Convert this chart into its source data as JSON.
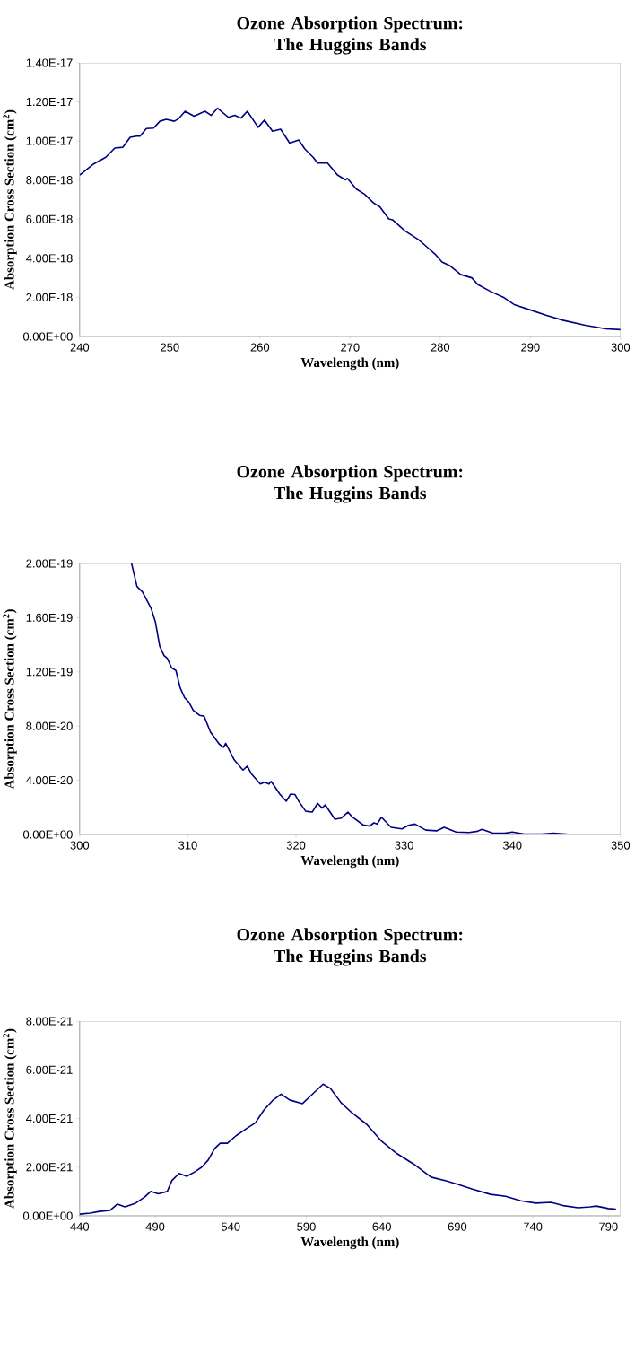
{
  "chart_data": [
    {
      "type": "line",
      "title": "Ozone Absorption Spectrum: The Huggins Bands",
      "xlabel": "Wavelength (nm)",
      "ylabel": "Absorption Cross Section (cm$^{2}$)",
      "color": "#000080",
      "x": [
        240,
        241.5,
        242.9,
        243.9,
        244.8,
        245.6,
        246.3,
        246.7,
        247.4,
        248.2,
        248.9,
        249.6,
        250.5,
        251.0,
        251.7,
        252.7,
        253.9,
        254.6,
        255.3,
        256.5,
        257.2,
        257.9,
        258.6,
        259.8,
        260.5,
        261.4,
        262.3,
        263.3,
        264.3,
        265.0,
        265.9,
        266.4,
        267.5,
        268.6,
        269.5,
        269.7,
        270.7,
        271.6,
        272.6,
        273.3,
        274.3,
        274.7,
        276.1,
        277.6,
        278.5,
        279.5,
        280.2,
        281.1,
        282.3,
        283.5,
        284.2,
        285.6,
        287.1,
        288.2,
        289.9,
        291.8,
        293.7,
        296.1,
        298.4,
        300
      ],
      "values": [
        8.26e-18,
        8.81e-18,
        9.17e-18,
        9.64e-18,
        9.68e-18,
        1.019e-17,
        1.025e-17,
        1.025e-17,
        1.064e-17,
        1.066e-17,
        1.101e-17,
        1.111e-17,
        1.101e-17,
        1.115e-17,
        1.152e-17,
        1.127e-17,
        1.152e-17,
        1.131e-17,
        1.168e-17,
        1.121e-17,
        1.131e-17,
        1.117e-17,
        1.152e-17,
        1.07e-17,
        1.107e-17,
        1.05e-17,
        1.06e-17,
        9.89e-18,
        1.005e-17,
        9.58e-18,
        9.17e-18,
        8.87e-18,
        8.87e-18,
        8.26e-18,
        8.01e-18,
        8.09e-18,
        7.54e-18,
        7.28e-18,
        6.83e-18,
        6.63e-18,
        6.01e-18,
        5.97e-18,
        5.4e-18,
        4.95e-18,
        4.59e-18,
        4.18e-18,
        3.81e-18,
        3.61e-18,
        3.16e-18,
        3e-18,
        2.65e-18,
        2.3e-18,
        1.98e-18,
        1.63e-18,
        1.37e-18,
        1.08e-18,
        8.2e-19,
        5.7e-19,
        3.9e-19,
        3.5e-19
      ],
      "xlim": [
        240,
        300
      ],
      "ylim": [
        0,
        1.4e-17
      ],
      "xticks": [
        240,
        250,
        260,
        270,
        280,
        290,
        300
      ],
      "yticks": [
        {
          "value": 0,
          "label": "0.00E+00"
        },
        {
          "value": 2e-18,
          "label": "2.00E-18"
        },
        {
          "value": 4e-18,
          "label": "4.00E-18"
        },
        {
          "value": 6e-18,
          "label": "6.00E-18"
        },
        {
          "value": 8e-18,
          "label": "8.00E-18"
        },
        {
          "value": 1e-17,
          "label": "1.00E-17"
        },
        {
          "value": 1.2e-17,
          "label": "1.20E-17"
        },
        {
          "value": 1.4e-17,
          "label": "1.40E-17"
        }
      ]
    },
    {
      "type": "line",
      "title": "Ozone Absorption Spectrum: The Huggins Bands",
      "xlabel": "Wavelength (nm)",
      "ylabel": "Absorption Cross Section (cm$^{2}$)",
      "color": "#000080",
      "x": [
        304.8,
        305.3,
        305.8,
        306.2,
        306.6,
        307.0,
        307.4,
        307.8,
        308.1,
        308.5,
        308.9,
        309.3,
        309.7,
        310.1,
        310.5,
        311.1,
        311.5,
        312.1,
        312.9,
        313.3,
        313.5,
        314.3,
        315.1,
        315.5,
        315.9,
        316.7,
        317.1,
        317.5,
        317.7,
        318.5,
        319.1,
        319.5,
        319.9,
        320.3,
        320.9,
        321.5,
        322.0,
        322.4,
        322.7,
        323.6,
        324.2,
        324.8,
        325.2,
        326.2,
        326.8,
        327.2,
        327.5,
        327.9,
        328.8,
        329.8,
        330.4,
        331.0,
        332.0,
        333.0,
        333.7,
        334.8,
        336.0,
        336.8,
        337.2,
        338.2,
        339.3,
        340.0,
        341.1,
        342.7,
        343.8,
        345.5,
        350
      ],
      "values": [
        2e-19,
        1.83e-19,
        1.79e-19,
        1.73e-19,
        1.67e-19,
        1.57e-19,
        1.39e-19,
        1.32e-19,
        1.3e-19,
        1.23e-19,
        1.21e-19,
        1.08e-19,
        1.01e-19,
        9.76e-20,
        9.17e-20,
        8.79e-20,
        8.73e-20,
        7.55e-20,
        6.67e-20,
        6.43e-20,
        6.73e-20,
        5.49e-20,
        4.75e-20,
        5.04e-20,
        4.45e-20,
        3.72e-20,
        3.86e-20,
        3.72e-20,
        3.92e-20,
        2.98e-20,
        2.45e-20,
        2.98e-20,
        2.95e-20,
        2.39e-20,
        1.71e-20,
        1.65e-20,
        2.3e-20,
        1.95e-20,
        2.18e-20,
        1.12e-20,
        1.21e-20,
        1.65e-20,
        1.3e-20,
        7.1e-21,
        6.2e-21,
        8.6e-21,
        7.7e-21,
        1.27e-20,
        5.3e-21,
        4.1e-21,
        6.8e-21,
        7.7e-21,
        3.2e-21,
        2.7e-21,
        5.3e-21,
        1.8e-21,
        1.5e-21,
        2.4e-21,
        3.8e-21,
        9e-22,
        9e-22,
        1.8e-21,
        3e-22,
        3e-22,
        9e-22,
        0,
        0
      ],
      "xlim": [
        300,
        350
      ],
      "ylim": [
        0,
        2e-19
      ],
      "xticks": [
        300,
        310,
        320,
        330,
        340,
        350
      ],
      "yticks": [
        {
          "value": 0,
          "label": "0.00E+00"
        },
        {
          "value": 4e-20,
          "label": "4.00E-20"
        },
        {
          "value": 8e-20,
          "label": "8.00E-20"
        },
        {
          "value": 1.2e-19,
          "label": "1.20E-19"
        },
        {
          "value": 1.6e-19,
          "label": "1.60E-19"
        },
        {
          "value": 2e-19,
          "label": "2.00E-19"
        }
      ]
    },
    {
      "type": "line",
      "title": "Ozone Absorption Spectrum: The Huggins Bands",
      "xlabel": "Wavelength (nm)",
      "ylabel": "Absorption Cross Section (cm$^{2}$)",
      "color": "#000080",
      "x": [
        440,
        447,
        453,
        460,
        465,
        470,
        477,
        483,
        487,
        492,
        498,
        501.0,
        505.8,
        510.9,
        516.6,
        520.8,
        525.1,
        529.3,
        533.0,
        537.8,
        543.5,
        550.6,
        556.3,
        562.0,
        567.6,
        573.3,
        579.0,
        587.5,
        593.1,
        601.1,
        605.9,
        613.0,
        620.1,
        630.0,
        639.9,
        649.9,
        661.2,
        672.6,
        682.5,
        690,
        700,
        712,
        722,
        732,
        742,
        752,
        760,
        770,
        778,
        782,
        790,
        795
      ],
      "values": [
        7e-23,
        1.1e-22,
        1.8e-22,
        2.2e-22,
        4.8e-22,
        3.7e-22,
        5.2e-22,
        7.7e-22,
        1e-21,
        9e-22,
        1e-21,
        1.44e-21,
        1.74e-21,
        1.62e-21,
        1.82e-21,
        2e-21,
        2.29e-21,
        2.76e-21,
        2.98e-21,
        2.98e-21,
        3.29e-21,
        3.59e-21,
        3.82e-21,
        4.35e-21,
        4.73e-21,
        5e-21,
        4.76e-21,
        4.61e-21,
        4.94e-21,
        5.41e-21,
        5.24e-21,
        4.65e-21,
        4.24e-21,
        3.76e-21,
        3.06e-21,
        2.56e-21,
        2.12e-21,
        1.59e-21,
        1.44e-21,
        1.3e-21,
        1.1e-21,
        8.8e-22,
        8e-22,
        6.2e-22,
        5.2e-22,
        5.5e-22,
        4.2e-22,
        3.3e-22,
        3.7e-22,
        4e-22,
        3e-22,
        2.7e-22
      ],
      "xlim": [
        440,
        798
      ],
      "ylim": [
        0,
        8e-21
      ],
      "xticks": [
        440,
        490,
        540,
        590,
        640,
        690,
        740,
        790
      ],
      "yticks": [
        {
          "value": 0,
          "label": "0.00E+00"
        },
        {
          "value": 2e-21,
          "label": "2.00E-21"
        },
        {
          "value": 4e-21,
          "label": "4.00E-21"
        },
        {
          "value": 6e-21,
          "label": "6.00E-21"
        },
        {
          "value": 8e-21,
          "label": "8.00E-21"
        }
      ]
    }
  ]
}
